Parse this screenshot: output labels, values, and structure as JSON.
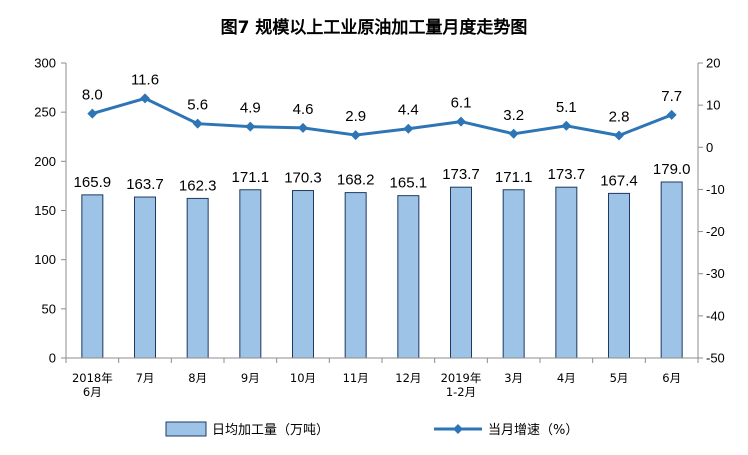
{
  "chart_data": {
    "type": "bar",
    "title": "图7  规模以上工业原油加工量月度走势图",
    "categories": [
      [
        "2018年",
        "6月"
      ],
      [
        "7月"
      ],
      [
        "8月"
      ],
      [
        "9月"
      ],
      [
        "10月"
      ],
      [
        "11月"
      ],
      [
        "12月"
      ],
      [
        "2019年",
        "1-2月"
      ],
      [
        "3月"
      ],
      [
        "4月"
      ],
      [
        "5月"
      ],
      [
        "6月"
      ]
    ],
    "series": [
      {
        "name": "日均加工量（万吨）",
        "type": "bar",
        "axis": "left",
        "values": [
          165.9,
          163.7,
          162.3,
          171.1,
          170.3,
          168.2,
          165.1,
          173.7,
          171.1,
          173.7,
          167.4,
          179.0
        ],
        "labels": [
          "165.9",
          "163.7",
          "162.3",
          "171.1",
          "170.3",
          "168.2",
          "165.1",
          "173.7",
          "171.1",
          "173.7",
          "167.4",
          "179.0"
        ],
        "color": "#9DC3E6",
        "border": "#1F3864"
      },
      {
        "name": "当月增速（%）",
        "type": "line",
        "axis": "right",
        "values": [
          8.0,
          11.6,
          5.6,
          4.9,
          4.6,
          2.9,
          4.4,
          6.1,
          3.2,
          5.1,
          2.8,
          7.7
        ],
        "labels": [
          "8.0",
          "11.6",
          "5.6",
          "4.9",
          "4.6",
          "2.9",
          "4.4",
          "6.1",
          "3.2",
          "5.1",
          "2.8",
          "7.7"
        ],
        "color": "#2E75B6"
      }
    ],
    "y_left": {
      "min": 0,
      "max": 300,
      "ticks": [
        "0",
        "50",
        "100",
        "150",
        "200",
        "250",
        "300"
      ]
    },
    "y_right": {
      "min": -50,
      "max": 20,
      "ticks": [
        "-50",
        "-40",
        "-30",
        "-20",
        "-10",
        "0",
        "10",
        "20"
      ]
    },
    "grid": false,
    "legend_position": "bottom"
  }
}
